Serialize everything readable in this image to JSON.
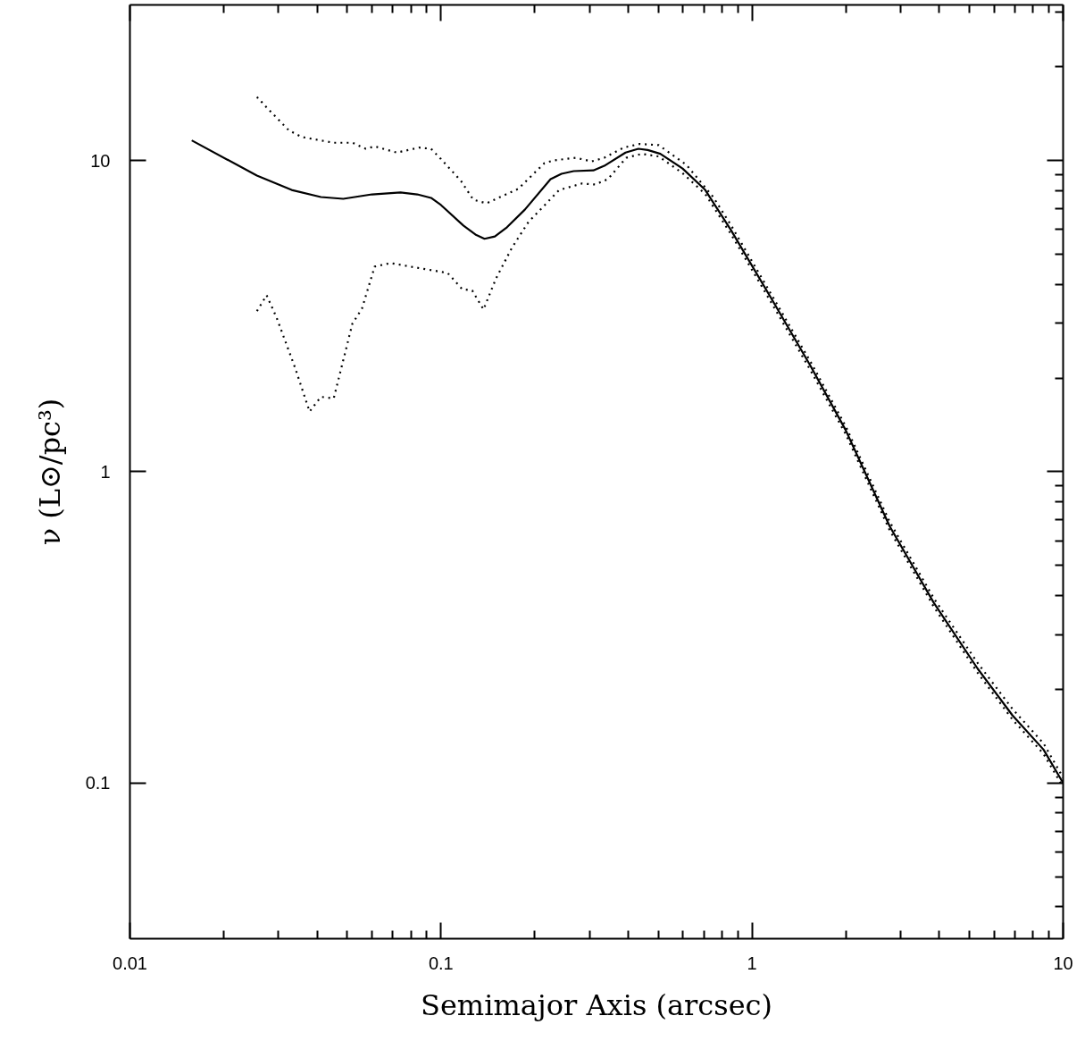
{
  "chart_data": {
    "type": "line",
    "xlabel": "Semimajor Axis (arcsec)",
    "ylabel": "ν (L⊙/pc³)",
    "log": "xy",
    "xlim": [
      0.01,
      10
    ],
    "ylim": [
      0.0316,
      31.6
    ],
    "xticks": [
      0.01,
      {
        "value": 0.02,
        "label": null
      },
      {
        "value": 0.03,
        "label": null
      },
      {
        "value": 0.04,
        "label": null
      },
      {
        "value": 0.05,
        "label": null
      },
      {
        "value": 0.06,
        "label": null
      },
      {
        "value": 0.07,
        "label": null
      },
      {
        "value": 0.08,
        "label": null
      },
      {
        "value": 0.09,
        "label": null
      },
      0.1,
      {
        "value": 0.2,
        "label": null
      },
      {
        "value": 0.3,
        "label": null
      },
      {
        "value": 0.4,
        "label": null
      },
      {
        "value": 0.5,
        "label": null
      },
      {
        "value": 0.6,
        "label": null
      },
      {
        "value": 0.7,
        "label": null
      },
      {
        "value": 0.8,
        "label": null
      },
      {
        "value": 0.9,
        "label": null
      },
      1,
      {
        "value": 2,
        "label": null
      },
      {
        "value": 3,
        "label": null
      },
      {
        "value": 4,
        "label": null
      },
      {
        "value": 5,
        "label": null
      },
      {
        "value": 6,
        "label": null
      },
      {
        "value": 7,
        "label": null
      },
      {
        "value": 8,
        "label": null
      },
      {
        "value": 9,
        "label": null
      },
      10
    ],
    "yticks": [
      {
        "value": 0.04,
        "label": null
      },
      {
        "value": 0.05,
        "label": null
      },
      {
        "value": 0.06,
        "label": null
      },
      {
        "value": 0.07,
        "label": null
      },
      {
        "value": 0.08,
        "label": null
      },
      {
        "value": 0.09,
        "label": null
      },
      0.1,
      {
        "value": 0.2,
        "label": null
      },
      {
        "value": 0.3,
        "label": null
      },
      {
        "value": 0.4,
        "label": null
      },
      {
        "value": 0.5,
        "label": null
      },
      {
        "value": 0.6,
        "label": null
      },
      {
        "value": 0.7,
        "label": null
      },
      {
        "value": 0.8,
        "label": null
      },
      {
        "value": 0.9,
        "label": null
      },
      1,
      {
        "value": 2,
        "label": null
      },
      {
        "value": 3,
        "label": null
      },
      {
        "value": 4,
        "label": null
      },
      {
        "value": 5,
        "label": null
      },
      {
        "value": 6,
        "label": null
      },
      {
        "value": 7,
        "label": null
      },
      {
        "value": 8,
        "label": null
      },
      {
        "value": 9,
        "label": null
      },
      10,
      {
        "value": 20,
        "label": null
      },
      {
        "value": 30,
        "label": null
      }
    ],
    "series": [
      {
        "color": "#000000",
        "line_style": "dotted",
        "x": [
          0.0256,
          0.0275,
          0.0296,
          0.034,
          0.0378,
          0.0411,
          0.0452,
          0.0519,
          0.0557,
          0.0612,
          0.0689,
          0.0798,
          0.105,
          0.117,
          0.126,
          0.137,
          0.15,
          0.169,
          0.191,
          0.24,
          0.284,
          0.313,
          0.344,
          0.394,
          0.442,
          0.501,
          0.598,
          0.707,
          0.855,
          1.15,
          1.54,
          2.0,
          2.77,
          3.84,
          5.31,
          6.87,
          8.65,
          10
        ],
        "values": [
          3.28,
          3.69,
          3.13,
          2.15,
          1.56,
          1.74,
          1.72,
          2.99,
          3.34,
          4.56,
          4.68,
          4.56,
          4.35,
          3.86,
          3.82,
          3.32,
          4.16,
          5.24,
          6.34,
          8.04,
          8.43,
          8.37,
          8.71,
          10.2,
          10.5,
          10.3,
          9.1,
          7.8,
          5.8,
          3.51,
          2.12,
          1.32,
          0.648,
          0.368,
          0.226,
          0.16,
          0.124,
          0.097
        ]
      },
      {
        "color": "#000000",
        "line_style": "solid",
        "x": [
          0.0158,
          0.0256,
          0.0331,
          0.0411,
          0.0485,
          0.06,
          0.0741,
          0.0839,
          0.0929,
          0.1,
          0.118,
          0.129,
          0.138,
          0.149,
          0.163,
          0.186,
          0.225,
          0.244,
          0.267,
          0.309,
          0.335,
          0.392,
          0.431,
          0.462,
          0.507,
          0.598,
          0.707,
          0.855,
          1.15,
          1.54,
          2.0,
          2.77,
          3.84,
          5.31,
          6.87,
          8.65,
          10
        ],
        "values": [
          11.6,
          8.94,
          8.04,
          7.63,
          7.53,
          7.78,
          7.89,
          7.78,
          7.58,
          7.19,
          6.18,
          5.78,
          5.6,
          5.7,
          6.1,
          6.95,
          8.71,
          9.06,
          9.24,
          9.29,
          9.61,
          10.6,
          10.9,
          10.8,
          10.5,
          9.42,
          8.04,
          5.98,
          3.62,
          2.19,
          1.36,
          0.668,
          0.379,
          0.233,
          0.165,
          0.128,
          0.1
        ]
      },
      {
        "color": "#000000",
        "line_style": "dotted",
        "x": [
          0.0256,
          0.0275,
          0.0324,
          0.0356,
          0.0452,
          0.0519,
          0.0573,
          0.0612,
          0.0721,
          0.0851,
          0.0929,
          0.1,
          0.116,
          0.127,
          0.14,
          0.155,
          0.177,
          0.215,
          0.23,
          0.271,
          0.305,
          0.335,
          0.387,
          0.435,
          0.501,
          0.615,
          0.75,
          0.855,
          1.15,
          1.54,
          2.0,
          2.77,
          3.84,
          5.31,
          6.87,
          8.65,
          10
        ],
        "values": [
          16.0,
          14.8,
          12.5,
          11.9,
          11.4,
          11.4,
          10.9,
          11.1,
          10.6,
          11.0,
          10.9,
          10.1,
          8.59,
          7.48,
          7.28,
          7.63,
          8.1,
          9.8,
          10.0,
          10.2,
          9.93,
          10.2,
          11.0,
          11.3,
          11.2,
          9.68,
          7.63,
          6.2,
          3.73,
          2.26,
          1.4,
          0.69,
          0.392,
          0.243,
          0.173,
          0.134,
          0.104
        ]
      }
    ]
  }
}
